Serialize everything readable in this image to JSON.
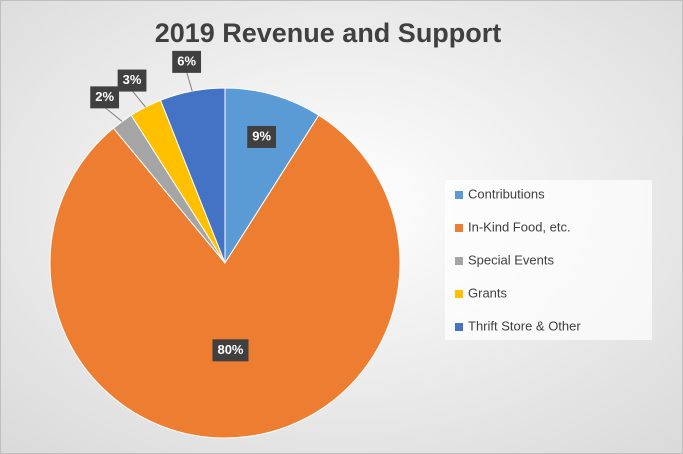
{
  "chart_data": {
    "type": "pie",
    "title": "2019 Revenue  and Support",
    "categories": [
      "Contributions",
      "In-Kind Food, etc.",
      "Special Events",
      "Grants",
      "Thrift Store & Other"
    ],
    "values": [
      9,
      80,
      2,
      3,
      6
    ],
    "value_labels": [
      "9%",
      "80%",
      "2%",
      "3%",
      "6%"
    ],
    "colors": [
      "#5b9bd5",
      "#ed7d31",
      "#a5a5a5",
      "#ffc000",
      "#4472c4"
    ],
    "legend": "right"
  }
}
